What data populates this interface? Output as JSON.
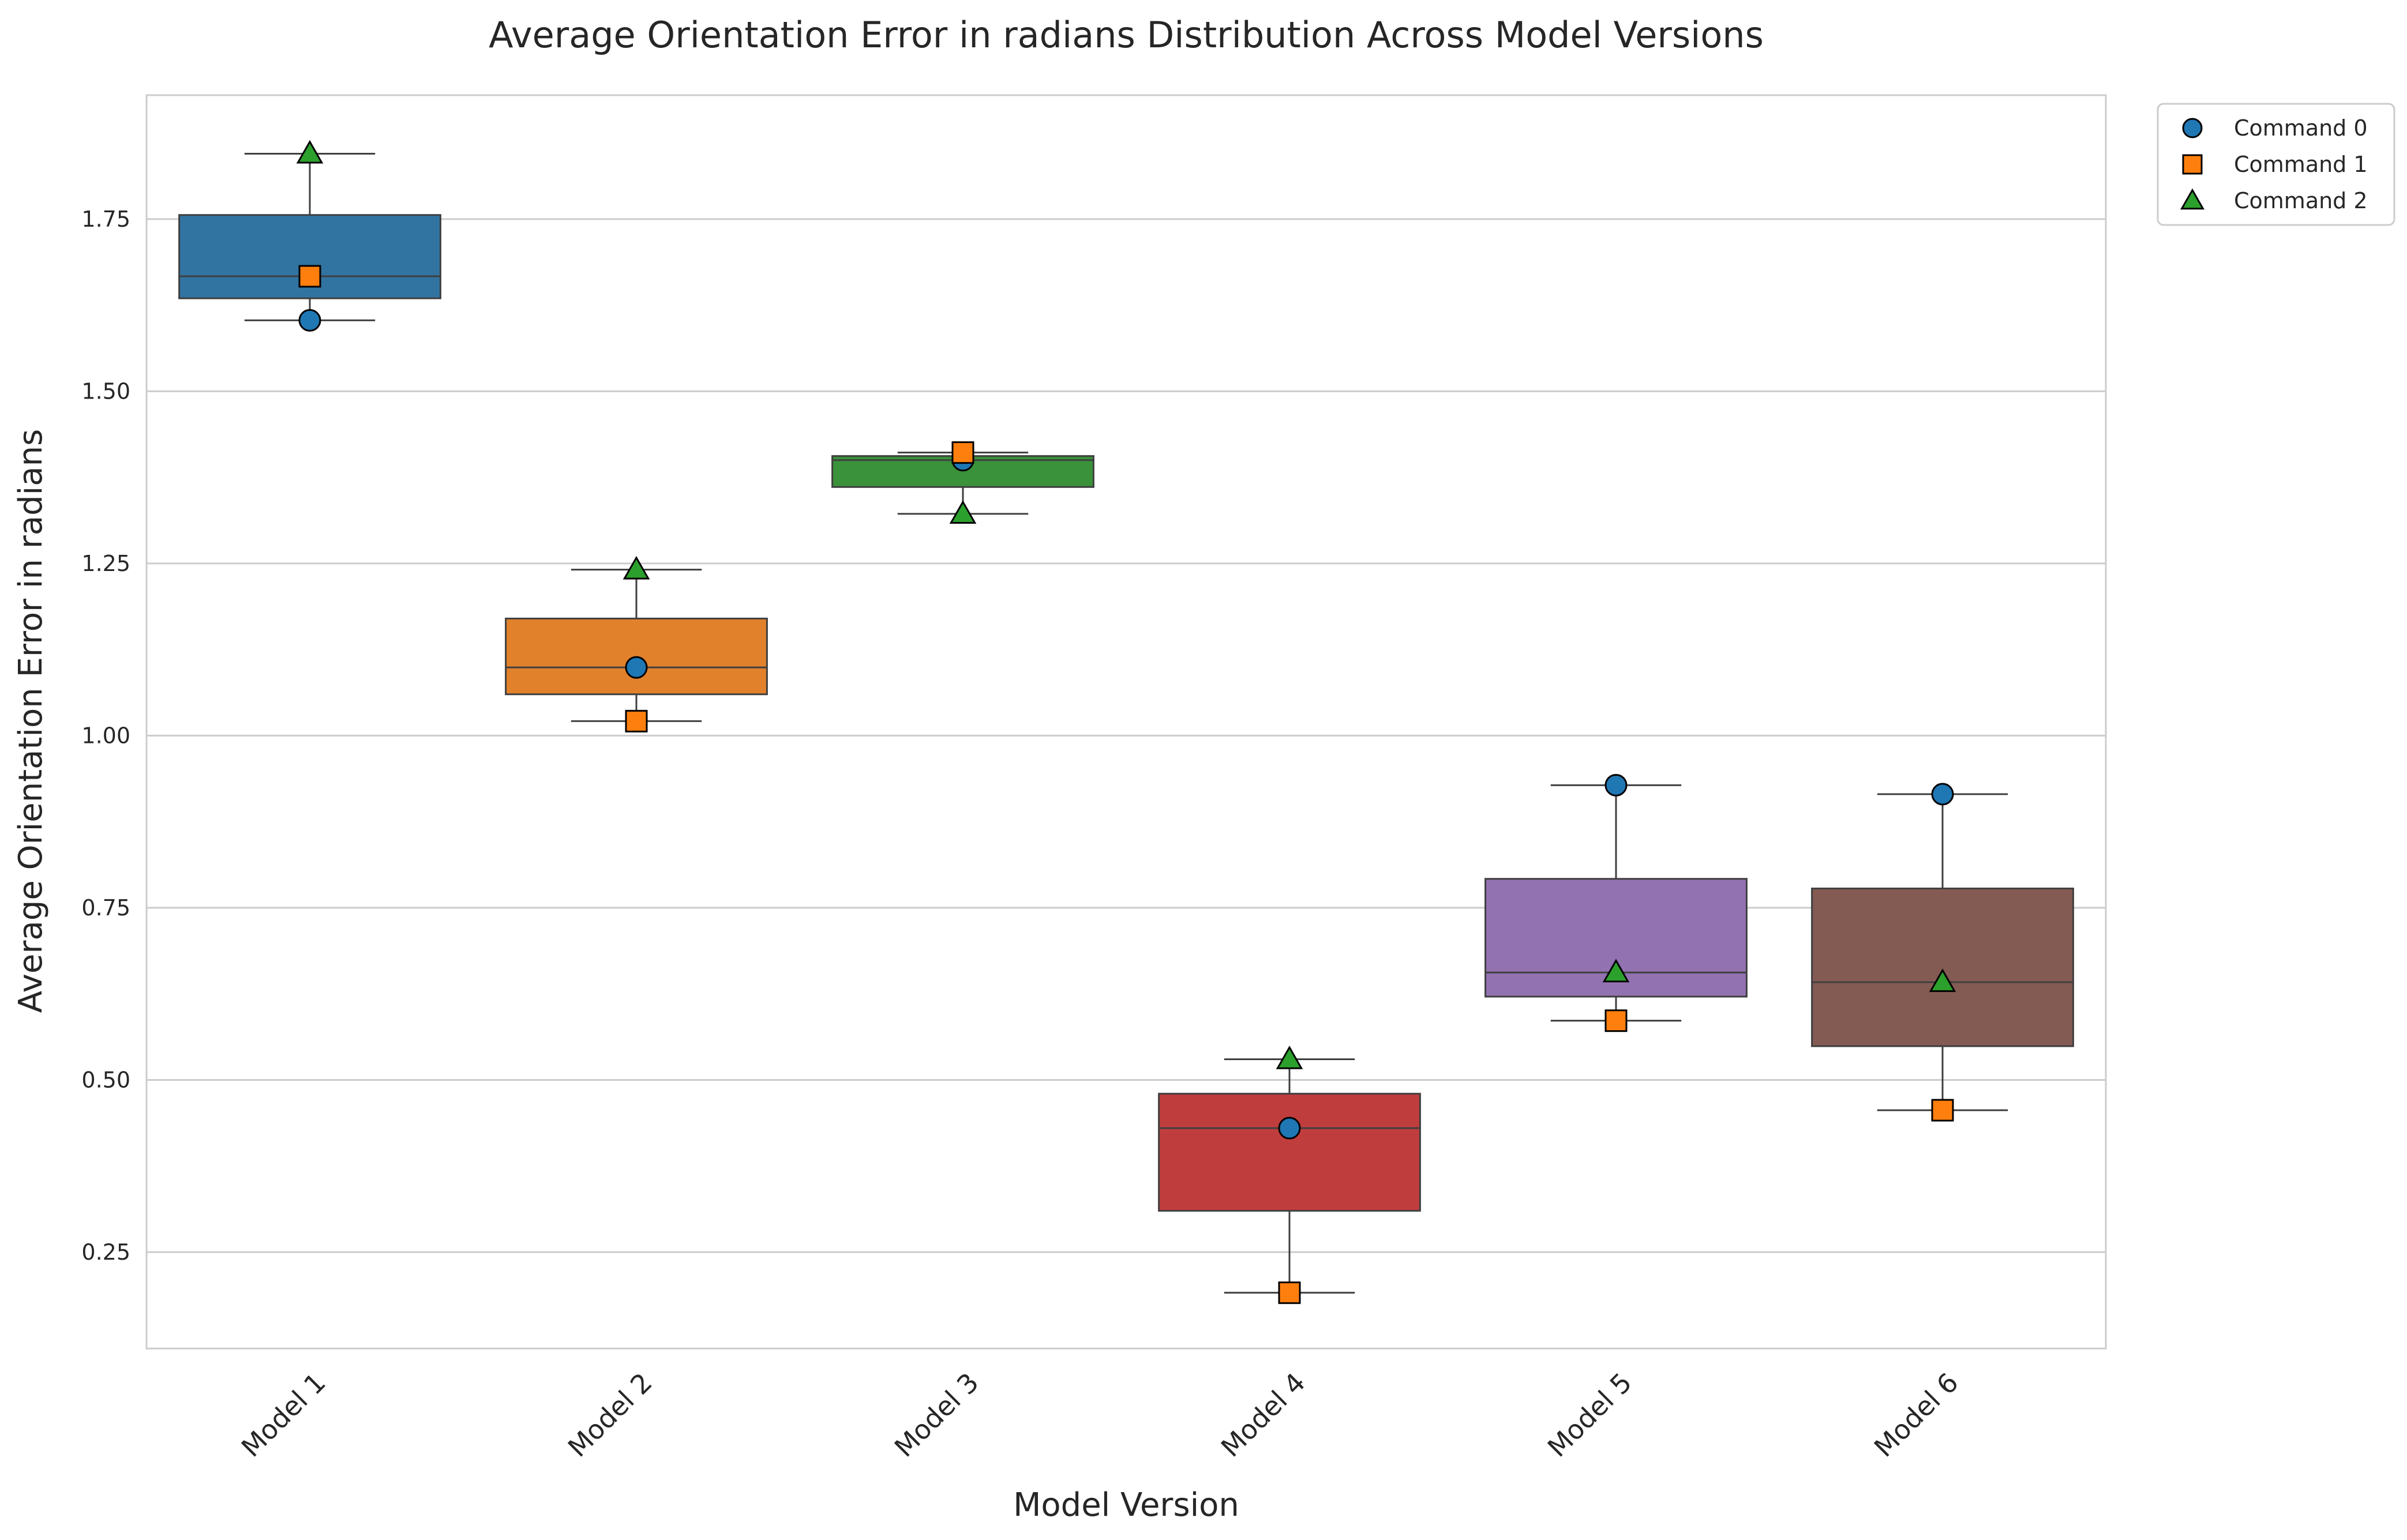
{
  "chart_data": {
    "type": "box",
    "title": "Average Orientation Error in radians Distribution Across Model Versions",
    "xlabel": "Model Version",
    "ylabel": "Average Orientation Error in radians",
    "ylim": [
      0.11,
      1.93
    ],
    "yticks": [
      0.25,
      0.5,
      0.75,
      1.0,
      1.25,
      1.5,
      1.75
    ],
    "ytick_labels": [
      "0.25",
      "0.50",
      "0.75",
      "1.00",
      "1.25",
      "1.50",
      "1.75"
    ],
    "grid": "horizontal",
    "legend_position": "outside-top-right",
    "categories": [
      "Model 1",
      "Model 2",
      "Model 3",
      "Model 4",
      "Model 5",
      "Model 6"
    ],
    "box_colors": [
      "#3274a1",
      "#e1812c",
      "#3a923a",
      "#c03d3e",
      "#9372b2",
      "#845b53"
    ],
    "boxes": [
      {
        "whislo": 1.603,
        "q1": 1.635,
        "med": 1.667,
        "q3": 1.756,
        "whishi": 1.845
      },
      {
        "whislo": 1.021,
        "q1": 1.06,
        "med": 1.099,
        "q3": 1.17,
        "whishi": 1.241
      },
      {
        "whislo": 1.322,
        "q1": 1.361,
        "med": 1.4,
        "q3": 1.406,
        "whishi": 1.411
      },
      {
        "whislo": 0.191,
        "q1": 0.31,
        "med": 0.43,
        "q3": 0.48,
        "whishi": 0.53
      },
      {
        "whislo": 0.586,
        "q1": 0.621,
        "med": 0.656,
        "q3": 0.792,
        "whishi": 0.928
      },
      {
        "whislo": 0.456,
        "q1": 0.549,
        "med": 0.642,
        "q3": 0.778,
        "whishi": 0.915
      }
    ],
    "series": [
      {
        "name": "Command 0",
        "marker": "circle",
        "color": "#1f77b4",
        "values": [
          1.603,
          1.099,
          1.4,
          0.43,
          0.928,
          0.915
        ]
      },
      {
        "name": "Command 1",
        "marker": "square",
        "color": "#ff7f0e",
        "values": [
          1.667,
          1.021,
          1.411,
          0.191,
          0.586,
          0.456
        ]
      },
      {
        "name": "Command 2",
        "marker": "triangle",
        "color": "#2ca02c",
        "values": [
          1.845,
          1.241,
          1.322,
          0.53,
          0.656,
          0.642
        ]
      }
    ]
  }
}
